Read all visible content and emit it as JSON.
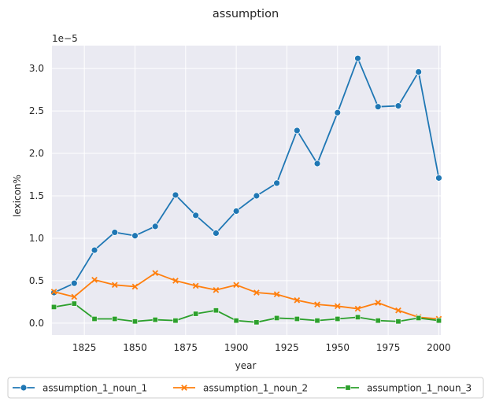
{
  "chart_data": {
    "type": "line",
    "title": "assumption",
    "xlabel": "year",
    "ylabel": "lexicon%",
    "y_offset_label": "1e−5",
    "xlim": [
      1809,
      2001
    ],
    "ylim": [
      -0.14,
      3.27
    ],
    "x_ticks": [
      1825,
      1850,
      1875,
      1900,
      1925,
      1950,
      1975,
      2000
    ],
    "y_ticks": [
      0.0,
      0.5,
      1.0,
      1.5,
      2.0,
      2.5,
      3.0
    ],
    "y_tick_labels": [
      "0.0",
      "0.5",
      "1.0",
      "1.5",
      "2.0",
      "2.5",
      "3.0"
    ],
    "grid": true,
    "legend_position": "bottom",
    "x": [
      1810,
      1820,
      1830,
      1840,
      1850,
      1860,
      1870,
      1880,
      1890,
      1900,
      1910,
      1920,
      1930,
      1940,
      1950,
      1960,
      1970,
      1980,
      1990,
      2000
    ],
    "series": [
      {
        "name": "assumption_1_noun_1",
        "color": "#1f77b4",
        "marker": "circle",
        "values": [
          0.36,
          0.47,
          0.86,
          1.07,
          1.03,
          1.14,
          1.51,
          1.27,
          1.06,
          1.32,
          1.5,
          1.65,
          2.27,
          1.88,
          2.48,
          3.12,
          2.55,
          2.56,
          2.96,
          1.71
        ]
      },
      {
        "name": "assumption_1_noun_2",
        "color": "#ff7f0e",
        "marker": "x",
        "values": [
          0.37,
          0.31,
          0.51,
          0.45,
          0.43,
          0.59,
          0.5,
          0.44,
          0.39,
          0.45,
          0.36,
          0.34,
          0.27,
          0.22,
          0.2,
          0.17,
          0.24,
          0.15,
          0.07,
          0.05
        ]
      },
      {
        "name": "assumption_1_noun_3",
        "color": "#2ca02c",
        "marker": "square",
        "values": [
          0.19,
          0.23,
          0.05,
          0.05,
          0.02,
          0.04,
          0.03,
          0.11,
          0.15,
          0.03,
          0.01,
          0.06,
          0.05,
          0.03,
          0.05,
          0.07,
          0.03,
          0.02,
          0.06,
          0.03
        ]
      }
    ]
  }
}
